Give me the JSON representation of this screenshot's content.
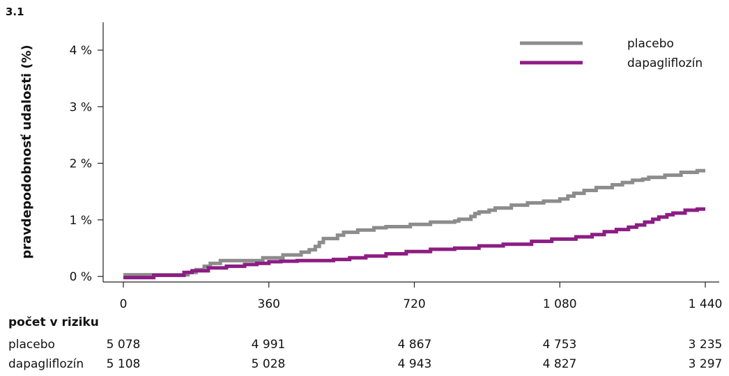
{
  "figure_label": "3.1",
  "risk_table": {
    "title": "počet v riziku",
    "rows": [
      {
        "name": "placebo",
        "values": [
          "5 078",
          "4 991",
          "4 867",
          "4 753",
          "3 235"
        ]
      },
      {
        "name": "dapagliflozín",
        "values": [
          "5 108",
          "5 028",
          "4 943",
          "4 827",
          "3 297"
        ]
      }
    ]
  },
  "chart_data": {
    "type": "line",
    "step": true,
    "title": "",
    "xlabel": "",
    "ylabel": "pravdepodobnosť udalosti (%)",
    "xlim": [
      0,
      1440
    ],
    "ylim": [
      0,
      4.35
    ],
    "x_ticks": [
      0,
      360,
      720,
      1080,
      1440
    ],
    "x_tick_labels": [
      "0",
      "360",
      "720",
      "1 080",
      "1 440"
    ],
    "y_ticks": [
      0,
      1,
      2,
      3,
      4
    ],
    "y_tick_labels": [
      "0 %",
      "1 %",
      "2 %",
      "3 %",
      "4 %"
    ],
    "legend_position": "top-right",
    "grid": false,
    "series": [
      {
        "name": "placebo",
        "color": "#8c8c8c",
        "points": [
          [
            0,
            0.03
          ],
          [
            150,
            0.03
          ],
          [
            160,
            0.07
          ],
          [
            180,
            0.12
          ],
          [
            200,
            0.18
          ],
          [
            215,
            0.23
          ],
          [
            240,
            0.28
          ],
          [
            330,
            0.28
          ],
          [
            345,
            0.33
          ],
          [
            380,
            0.33
          ],
          [
            395,
            0.38
          ],
          [
            430,
            0.38
          ],
          [
            440,
            0.43
          ],
          [
            460,
            0.47
          ],
          [
            475,
            0.53
          ],
          [
            485,
            0.6
          ],
          [
            495,
            0.67
          ],
          [
            520,
            0.67
          ],
          [
            530,
            0.73
          ],
          [
            545,
            0.78
          ],
          [
            580,
            0.82
          ],
          [
            620,
            0.86
          ],
          [
            650,
            0.88
          ],
          [
            700,
            0.88
          ],
          [
            710,
            0.92
          ],
          [
            760,
            0.96
          ],
          [
            820,
            0.98
          ],
          [
            830,
            1.01
          ],
          [
            860,
            1.06
          ],
          [
            870,
            1.11
          ],
          [
            880,
            1.14
          ],
          [
            905,
            1.17
          ],
          [
            920,
            1.21
          ],
          [
            960,
            1.26
          ],
          [
            1000,
            1.3
          ],
          [
            1040,
            1.33
          ],
          [
            1080,
            1.37
          ],
          [
            1100,
            1.42
          ],
          [
            1115,
            1.47
          ],
          [
            1140,
            1.52
          ],
          [
            1170,
            1.57
          ],
          [
            1210,
            1.62
          ],
          [
            1235,
            1.66
          ],
          [
            1260,
            1.7
          ],
          [
            1285,
            1.72
          ],
          [
            1300,
            1.75
          ],
          [
            1340,
            1.79
          ],
          [
            1380,
            1.84
          ],
          [
            1420,
            1.87
          ],
          [
            1440,
            1.87
          ]
        ]
      },
      {
        "name": "dapagliflozín",
        "color": "#8c1d82",
        "points": [
          [
            0,
            -0.02
          ],
          [
            70,
            -0.02
          ],
          [
            75,
            0.02
          ],
          [
            140,
            0.02
          ],
          [
            150,
            0.07
          ],
          [
            170,
            0.1
          ],
          [
            210,
            0.15
          ],
          [
            255,
            0.18
          ],
          [
            300,
            0.21
          ],
          [
            330,
            0.23
          ],
          [
            360,
            0.26
          ],
          [
            390,
            0.27
          ],
          [
            430,
            0.28
          ],
          [
            520,
            0.3
          ],
          [
            560,
            0.33
          ],
          [
            600,
            0.36
          ],
          [
            650,
            0.4
          ],
          [
            700,
            0.44
          ],
          [
            760,
            0.48
          ],
          [
            820,
            0.5
          ],
          [
            880,
            0.54
          ],
          [
            940,
            0.57
          ],
          [
            1010,
            0.62
          ],
          [
            1060,
            0.66
          ],
          [
            1120,
            0.7
          ],
          [
            1160,
            0.74
          ],
          [
            1190,
            0.79
          ],
          [
            1220,
            0.83
          ],
          [
            1250,
            0.87
          ],
          [
            1270,
            0.91
          ],
          [
            1290,
            0.96
          ],
          [
            1310,
            1.01
          ],
          [
            1325,
            1.05
          ],
          [
            1345,
            1.09
          ],
          [
            1360,
            1.12
          ],
          [
            1390,
            1.17
          ],
          [
            1420,
            1.19
          ],
          [
            1440,
            1.19
          ]
        ]
      }
    ]
  }
}
